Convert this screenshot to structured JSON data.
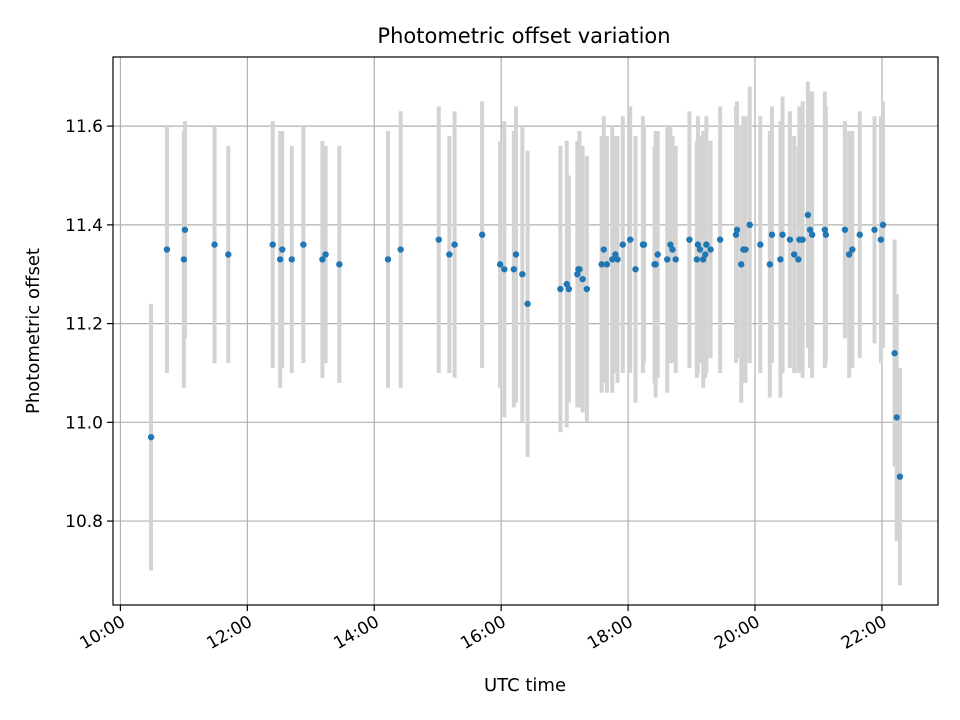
{
  "chart_data": {
    "type": "scatter",
    "title": "Photometric offset variation",
    "xlabel": "UTC time",
    "ylabel": "Photometric offset",
    "x_ticks": [
      "10:00",
      "12:00",
      "14:00",
      "16:00",
      "18:00",
      "20:00",
      "22:00"
    ],
    "y_ticks": [
      "10.8",
      "11.0",
      "11.2",
      "11.4",
      "11.6"
    ],
    "xlim": [
      "09:53",
      "22:53"
    ],
    "ylim": [
      10.63,
      11.74
    ],
    "grid": true,
    "colors": {
      "point": "#1f77b4",
      "errorbar": "#d3d3d3",
      "grid": "#b0b0b0"
    },
    "series": [
      {
        "x": [
          "10:29",
          "10:44",
          "11:00",
          "11:01",
          "11:29",
          "11:42",
          "12:24",
          "12:31",
          "12:33",
          "12:42",
          "12:53",
          "13:11",
          "13:14",
          "13:27",
          "14:13",
          "14:25",
          "15:01",
          "15:11",
          "15:16",
          "15:42",
          "15:59",
          "16:03",
          "16:12",
          "16:14",
          "16:20",
          "16:25",
          "16:56",
          "17:02",
          "17:04",
          "17:12",
          "17:13",
          "17:14",
          "17:17",
          "17:21",
          "17:35",
          "17:37",
          "17:40",
          "17:45",
          "17:48",
          "17:50",
          "17:55",
          "18:02",
          "18:07",
          "18:14",
          "18:15",
          "18:25",
          "18:26",
          "18:28",
          "18:37",
          "18:40",
          "18:42",
          "18:45",
          "18:58",
          "19:05",
          "19:06",
          "19:08",
          "19:11",
          "19:13",
          "19:14",
          "19:18",
          "19:27",
          "19:42",
          "19:43",
          "19:47",
          "19:49",
          "19:51",
          "19:55",
          "20:05",
          "20:14",
          "20:16",
          "20:24",
          "20:26",
          "20:33",
          "20:37",
          "20:41",
          "20:42",
          "20:45",
          "20:50",
          "20:52",
          "20:54",
          "21:06",
          "21:07",
          "21:25",
          "21:29",
          "21:32",
          "21:39",
          "21:53",
          "21:59",
          "22:01",
          "22:12",
          "22:14",
          "22:17"
        ],
        "y": [
          10.97,
          11.35,
          11.33,
          11.39,
          11.36,
          11.34,
          11.36,
          11.33,
          11.35,
          11.33,
          11.36,
          11.33,
          11.34,
          11.32,
          11.33,
          11.35,
          11.37,
          11.34,
          11.36,
          11.38,
          11.32,
          11.31,
          11.31,
          11.34,
          11.3,
          11.24,
          11.27,
          11.28,
          11.27,
          11.3,
          11.31,
          11.31,
          11.29,
          11.27,
          11.32,
          11.35,
          11.32,
          11.33,
          11.34,
          11.33,
          11.36,
          11.37,
          11.31,
          11.36,
          11.36,
          11.32,
          11.32,
          11.34,
          11.33,
          11.36,
          11.35,
          11.33,
          11.37,
          11.33,
          11.36,
          11.35,
          11.33,
          11.34,
          11.36,
          11.35,
          11.37,
          11.38,
          11.39,
          11.32,
          11.35,
          11.35,
          11.4,
          11.36,
          11.32,
          11.38,
          11.33,
          11.38,
          11.37,
          11.34,
          11.33,
          11.37,
          11.37,
          11.42,
          11.39,
          11.38,
          11.39,
          11.38,
          11.39,
          11.34,
          11.35,
          11.38,
          11.39,
          11.37,
          11.4,
          11.14,
          11.01,
          10.89
        ],
        "err": [
          0.27,
          0.25,
          0.26,
          0.22,
          0.24,
          0.22,
          0.25,
          0.26,
          0.24,
          0.23,
          0.24,
          0.24,
          0.22,
          0.24,
          0.26,
          0.28,
          0.27,
          0.24,
          0.27,
          0.27,
          0.25,
          0.3,
          0.28,
          0.3,
          0.3,
          0.31,
          0.29,
          0.29,
          0.23,
          0.27,
          0.26,
          0.28,
          0.27,
          0.27,
          0.26,
          0.27,
          0.26,
          0.27,
          0.24,
          0.25,
          0.26,
          0.27,
          0.27,
          0.26,
          0.24,
          0.24,
          0.27,
          0.25,
          0.27,
          0.24,
          0.23,
          0.23,
          0.26,
          0.24,
          0.26,
          0.23,
          0.26,
          0.25,
          0.26,
          0.22,
          0.27,
          0.26,
          0.26,
          0.28,
          0.27,
          0.27,
          0.28,
          0.26,
          0.27,
          0.26,
          0.28,
          0.28,
          0.26,
          0.24,
          0.23,
          0.27,
          0.28,
          0.27,
          0.28,
          0.29,
          0.28,
          0.26,
          0.22,
          0.25,
          0.24,
          0.25,
          0.23,
          0.25,
          0.25,
          0.23,
          0.25,
          0.22
        ]
      }
    ]
  }
}
